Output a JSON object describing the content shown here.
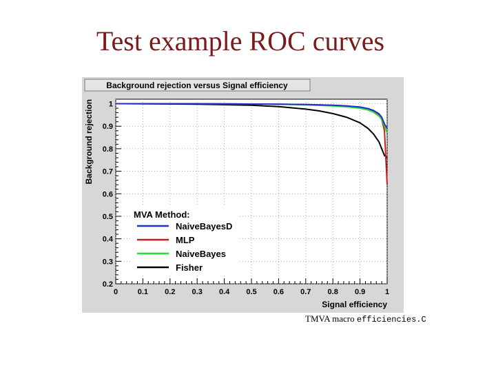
{
  "slide": {
    "title": "Test example ROC curves",
    "caption_prefix": "TMVA macro",
    "caption_file": "efficiencies.C"
  },
  "colors": {
    "title": "#7a1a1a",
    "panel": "#d7d7d7",
    "frame": "#ffffff",
    "NaiveBayesD": "#1f2fd0",
    "MLP": "#cc1a1a",
    "NaiveBayes": "#22dd33",
    "Fisher": "#000000"
  },
  "chart_data": {
    "type": "line",
    "title": "Background rejection versus Signal efficiency",
    "xlabel": "Signal efficiency",
    "ylabel": "Background rejection",
    "xlim": [
      0,
      1
    ],
    "ylim": [
      0.2,
      1.02
    ],
    "xticks": [
      0,
      0.1,
      0.2,
      0.3,
      0.4,
      0.5,
      0.6,
      0.7,
      0.8,
      0.9,
      1
    ],
    "yticks": [
      0.2,
      0.3,
      0.4,
      0.5,
      0.6,
      0.7,
      0.8,
      0.9,
      1
    ],
    "grid": true,
    "legend": {
      "title": "MVA Method:",
      "position": "bottom-left"
    },
    "series": [
      {
        "name": "NaiveBayesD",
        "x": [
          0,
          0.3,
          0.6,
          0.7,
          0.8,
          0.85,
          0.9,
          0.93,
          0.95,
          0.97,
          0.98,
          0.99,
          1.0
        ],
        "y": [
          1,
          1,
          0.998,
          0.996,
          0.993,
          0.99,
          0.985,
          0.978,
          0.97,
          0.955,
          0.94,
          0.91,
          0.89
        ]
      },
      {
        "name": "MLP",
        "x": [
          0,
          0.3,
          0.6,
          0.7,
          0.8,
          0.85,
          0.9,
          0.93,
          0.95,
          0.97,
          0.98,
          0.99,
          1.0
        ],
        "y": [
          1,
          1,
          0.998,
          0.996,
          0.993,
          0.99,
          0.985,
          0.978,
          0.968,
          0.95,
          0.93,
          0.88,
          0.64
        ]
      },
      {
        "name": "NaiveBayes",
        "x": [
          0,
          0.3,
          0.6,
          0.7,
          0.8,
          0.85,
          0.9,
          0.93,
          0.95,
          0.97,
          0.98,
          0.99,
          1.0
        ],
        "y": [
          1,
          1,
          0.998,
          0.995,
          0.99,
          0.986,
          0.98,
          0.972,
          0.962,
          0.945,
          0.93,
          0.9,
          0.87
        ]
      },
      {
        "name": "Fisher",
        "x": [
          0,
          0.3,
          0.5,
          0.6,
          0.7,
          0.75,
          0.8,
          0.85,
          0.9,
          0.93,
          0.95,
          0.97,
          0.98,
          0.99,
          1.0
        ],
        "y": [
          1,
          0.998,
          0.993,
          0.987,
          0.976,
          0.968,
          0.956,
          0.94,
          0.915,
          0.89,
          0.865,
          0.83,
          0.8,
          0.77,
          0.76
        ]
      }
    ]
  }
}
